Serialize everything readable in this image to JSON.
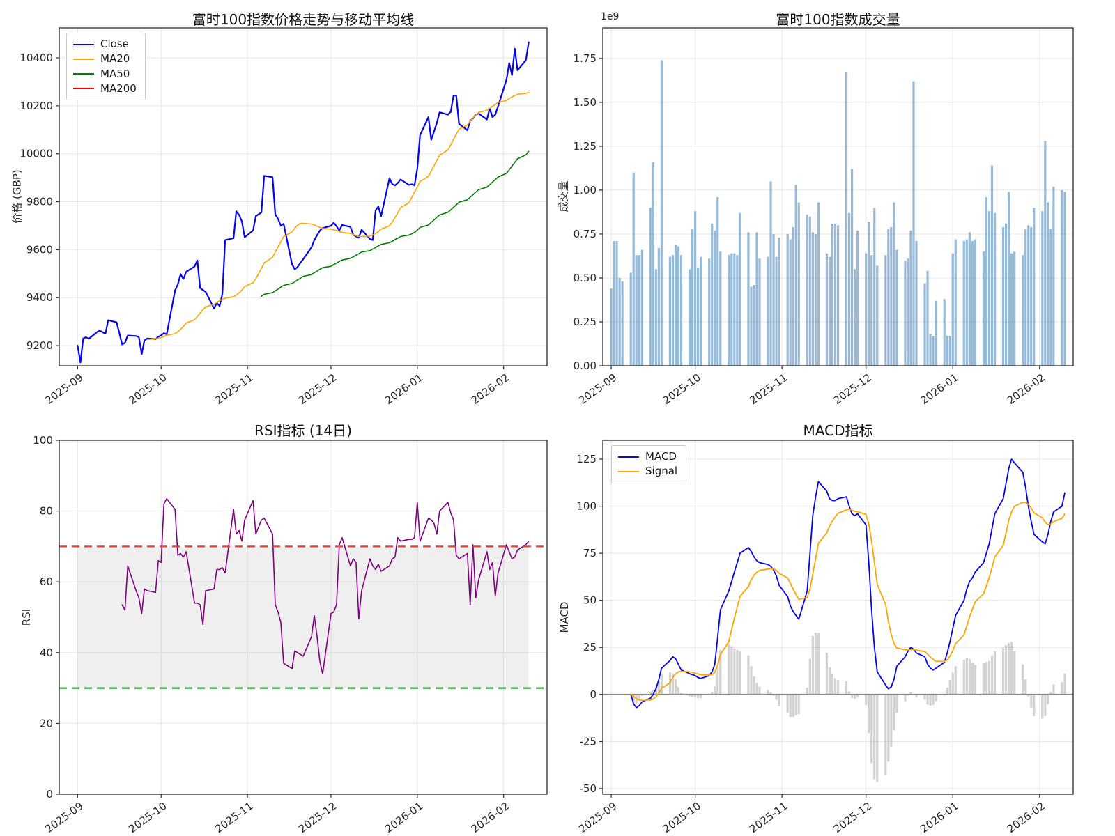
{
  "x_axis": {
    "start_date": "2025-09-01",
    "business_days": 117,
    "ticks": [
      {
        "label": "2025-09",
        "day": 0
      },
      {
        "label": "2025-10",
        "day": 30
      },
      {
        "label": "2025-11",
        "day": 61
      },
      {
        "label": "2025-12",
        "day": 91
      },
      {
        "label": "2026-01",
        "day": 122
      },
      {
        "label": "2026-02",
        "day": 153
      }
    ]
  },
  "style": {
    "grid_color": "#e7e7e7",
    "spine_color": "#2a2a2a",
    "tick_text_color": "#262626"
  },
  "chart_data": [
    {
      "id": "price",
      "type": "line",
      "title": "富时100指数价格走势与移动平均线",
      "ylabel": "价格 (GBP)",
      "ylim": [
        9116,
        10525
      ],
      "yticks": [
        {
          "v": 9200,
          "l": "9200"
        },
        {
          "v": 9400,
          "l": "9400"
        },
        {
          "v": 9600,
          "l": "9600"
        },
        {
          "v": 9800,
          "l": "9800"
        },
        {
          "v": 10000,
          "l": "10000"
        },
        {
          "v": 10200,
          "l": "10200"
        },
        {
          "v": 10400,
          "l": "10400"
        }
      ],
      "series": [
        {
          "name": "Close",
          "color": "#0404ee",
          "width": 2.2,
          "start": 0,
          "values": [
            9200,
            9130,
            9230,
            9235,
            9228,
            9257,
            9262,
            9256,
            9250,
            9306,
            9297,
            9252,
            9205,
            9212,
            9242,
            9240,
            9235,
            9165,
            9222,
            9230,
            9227,
            9237,
            9243,
            9252,
            9247,
            9430,
            9455,
            9498,
            9478,
            9508,
            9530,
            9555,
            9440,
            9432,
            9424,
            9355,
            9378,
            9365,
            9415,
            9640,
            9648,
            9760,
            9745,
            9718,
            9652,
            9680,
            9740,
            9748,
            9755,
            9908,
            9902,
            9748,
            9728,
            9700,
            9708,
            9540,
            9518,
            9528,
            9545,
            9560,
            9610,
            9640,
            9660,
            9680,
            9690,
            9700,
            9713,
            9698,
            9680,
            9703,
            9695,
            9663,
            9655,
            9650,
            9683,
            9645,
            9640,
            9763,
            9780,
            9740,
            9898,
            9873,
            9868,
            9878,
            9893,
            9870,
            9873,
            9868,
            9938,
            10078,
            10153,
            10058,
            10093,
            10128,
            10173,
            10163,
            10175,
            10243,
            10243,
            10125,
            10098,
            10138,
            10148,
            10163,
            10168,
            10143,
            10188,
            10153,
            10163,
            10198,
            10308,
            10378,
            10328,
            10438,
            10348,
            10390,
            10465
          ]
        },
        {
          "name": "MA20",
          "color": "#ffa500",
          "width": 1.6,
          "start": 19,
          "values": [
            9225,
            9228,
            9231,
            9234,
            9238,
            9243,
            9250,
            9258,
            9268,
            9280,
            9294,
            9308,
            9322,
            9336,
            9350,
            9362,
            9372,
            9380,
            9387,
            9393,
            9398,
            9404,
            9411,
            9420,
            9432,
            9446,
            9462,
            9480,
            9500,
            9522,
            9545,
            9568,
            9590,
            9612,
            9634,
            9655,
            9674,
            9690,
            9702,
            9710,
            9710,
            9707,
            9703,
            9698,
            9693,
            9689,
            9686,
            9683,
            9680,
            9676,
            9672,
            9668,
            9663,
            9658,
            9655,
            9655,
            9657,
            9661,
            9667,
            9675,
            9686,
            9700,
            9716,
            9734,
            9754,
            9775,
            9796,
            9818,
            9840,
            9862,
            9884,
            9906,
            9928,
            9950,
            9972,
            9994,
            10016,
            10038,
            10060,
            10082,
            10102,
            10120,
            10136,
            10150,
            10162,
            10172,
            10181,
            10190,
            10198,
            10206,
            10214,
            10222,
            10230,
            10237,
            10243,
            10248,
            10252,
            10256
          ]
        },
        {
          "name": "MA50",
          "color": "#008000",
          "width": 1.6,
          "start": 48,
          "values": [
            9406,
            9414,
            9421,
            9429,
            9436,
            9444,
            9451,
            9459,
            9466,
            9474,
            9481,
            9489,
            9496,
            9504,
            9511,
            9518,
            9525,
            9531,
            9538,
            9544,
            9551,
            9557,
            9564,
            9570,
            9577,
            9583,
            9590,
            9596,
            9603,
            9609,
            9616,
            9622,
            9629,
            9635,
            9642,
            9648,
            9655,
            9661,
            9666,
            9672,
            9682,
            9693,
            9703,
            9714,
            9724,
            9735,
            9745,
            9756,
            9766,
            9777,
            9787,
            9798,
            9808,
            9819,
            9829,
            9840,
            9850,
            9861,
            9871,
            9882,
            9892,
            9903,
            9918,
            9933,
            9949,
            9964,
            9979,
            9995,
            10010
          ]
        },
        {
          "name": "MA200",
          "color": "#ff0000",
          "width": 1.6,
          "start": 0,
          "values": []
        }
      ]
    },
    {
      "id": "volume",
      "type": "bar",
      "title": "富时100指数成交量",
      "ylabel": "成交量",
      "offset_text": "1e9",
      "ylim": [
        0,
        1.924
      ],
      "bar_color": "rgba(70,130,180,0.55)",
      "yticks": [
        {
          "v": 0,
          "l": "0.00"
        },
        {
          "v": 0.25,
          "l": "0.25"
        },
        {
          "v": 0.5,
          "l": "0.50"
        },
        {
          "v": 0.75,
          "l": "0.75"
        },
        {
          "v": 1.0,
          "l": "1.00"
        },
        {
          "v": 1.25,
          "l": "1.25"
        },
        {
          "v": 1.5,
          "l": "1.50"
        },
        {
          "v": 1.75,
          "l": "1.75"
        }
      ],
      "values": [
        0.44,
        0.71,
        0.71,
        0.5,
        0.48,
        0.53,
        1.1,
        0.63,
        0.63,
        0.66,
        0.9,
        1.16,
        0.55,
        0.67,
        1.74,
        0.62,
        0.63,
        0.69,
        0.68,
        0.63,
        0.55,
        0.78,
        0.88,
        0.56,
        0.62,
        0.61,
        0.81,
        0.77,
        0.96,
        0.65,
        0.63,
        0.64,
        0.64,
        0.63,
        0.87,
        0.76,
        0.45,
        0.46,
        0.76,
        0.61,
        0.62,
        1.05,
        0.75,
        0.62,
        0.73,
        0.75,
        0.72,
        0.79,
        1.03,
        0.93,
        0.86,
        0.85,
        0.76,
        0.75,
        0.93,
        0.64,
        0.62,
        0.81,
        0.81,
        0.8,
        1.67,
        0.87,
        1.12,
        0.55,
        0.77,
        0.64,
        0.82,
        0.63,
        0.9,
        0.57,
        0.63,
        0.78,
        0.79,
        0.93,
        0.66,
        0.6,
        0.61,
        0.77,
        1.62,
        0.71,
        0.47,
        0.54,
        0.18,
        0.17,
        0.37,
        0.38,
        0.17,
        0.17,
        0.64,
        0.72,
        0.71,
        0.72,
        0.76,
        0.71,
        0.72,
        0.65,
        0.96,
        0.88,
        1.14,
        0.87,
        0.79,
        0.81,
        0.99,
        0.64,
        0.65,
        0.63,
        0.78,
        0.8,
        0.79,
        0.9,
        0.88,
        1.28,
        0.93,
        0.78,
        1.02,
        1.0,
        0.99
      ]
    },
    {
      "id": "rsi",
      "type": "line",
      "title": "RSI指标 (14日)",
      "ylabel": "RSI",
      "ylim": [
        0,
        100
      ],
      "yticks": [
        {
          "v": 0,
          "l": "0"
        },
        {
          "v": 20,
          "l": "20"
        },
        {
          "v": 40,
          "l": "40"
        },
        {
          "v": 60,
          "l": "60"
        },
        {
          "v": 80,
          "l": "80"
        },
        {
          "v": 100,
          "l": "100"
        }
      ],
      "band": {
        "y1": 30,
        "y2": 70,
        "color": "rgba(130,130,130,0.13)"
      },
      "hlines": [
        {
          "y": 70,
          "color": "#f03b30",
          "style": "dashed"
        },
        {
          "y": 30,
          "color": "#23a32b",
          "style": "dashed"
        }
      ],
      "series": [
        {
          "name": "RSI",
          "color": "#800080",
          "width": 1.6,
          "start": 12,
          "values": [
            53.5,
            52,
            64.5,
            57.5,
            55.5,
            51,
            58,
            57.5,
            57,
            66,
            65.5,
            82,
            83.5,
            80.5,
            67.5,
            68,
            67,
            68.5,
            54,
            54,
            53.5,
            48,
            57.5,
            58,
            63.5,
            63.5,
            64,
            62.5,
            80.5,
            73.5,
            74.5,
            71.5,
            77.5,
            83,
            73.5,
            75.5,
            77.5,
            78,
            73.5,
            53.5,
            51.5,
            48.5,
            37,
            35.5,
            40.5,
            40,
            39.5,
            39,
            44.5,
            50.5,
            44.5,
            37.5,
            34,
            51,
            51.5,
            53.5,
            70.5,
            72.5,
            64.5,
            66.5,
            65.5,
            49.5,
            57.5,
            66.5,
            64.5,
            63.5,
            65,
            63,
            64.5,
            66.5,
            67,
            72.5,
            71.5,
            72,
            72,
            72.5,
            82.5,
            71.5,
            78,
            77.5,
            76.5,
            73.5,
            80,
            82.5,
            79.5,
            77.5,
            67.5,
            66.5,
            68,
            53.5,
            70.5,
            55.5,
            60.5,
            68.5,
            63.5,
            65.5,
            56,
            62.5,
            70.5,
            68.5,
            66.5,
            67,
            69,
            70.5,
            71.5
          ]
        }
      ]
    },
    {
      "id": "macd",
      "type": "line_hist",
      "title": "MACD指标",
      "ylabel": "MACD",
      "ylim": [
        -53,
        135
      ],
      "yticks": [
        {
          "v": -50,
          "l": "-50"
        },
        {
          "v": -25,
          "l": "-25"
        },
        {
          "v": 0,
          "l": "0"
        },
        {
          "v": 25,
          "l": "25"
        },
        {
          "v": 50,
          "l": "50"
        },
        {
          "v": 75,
          "l": "75"
        },
        {
          "v": 100,
          "l": "100"
        },
        {
          "v": 125,
          "l": "125"
        }
      ],
      "zero_line_color": "#8a8a8a",
      "hist_color": "rgba(127,127,127,0.35)",
      "series": [
        {
          "name": "MACD",
          "color": "#0404ee",
          "width": 1.8,
          "start": 5,
          "values": [
            0,
            -5,
            -7,
            -6,
            -4,
            -2,
            0,
            3,
            8,
            14,
            18,
            20,
            19,
            16,
            13,
            11,
            10.5,
            10,
            9,
            8.5,
            10,
            12,
            16,
            30,
            45,
            55,
            60,
            65,
            70,
            75,
            78,
            76,
            73,
            71,
            70,
            69,
            68,
            66,
            63,
            58,
            52,
            47,
            44,
            42,
            40,
            55,
            75,
            95,
            105,
            113,
            108,
            104,
            103,
            103,
            104,
            105,
            100,
            96,
            95,
            96,
            90,
            70,
            45,
            25,
            12,
            5,
            3,
            4,
            8,
            15,
            20,
            23,
            25,
            24,
            22,
            20,
            16,
            14,
            13,
            14,
            17,
            22,
            28,
            35,
            42,
            50,
            56,
            60,
            62,
            65,
            70,
            75,
            80,
            88,
            96,
            104,
            112,
            120,
            125,
            123,
            118,
            110,
            100,
            92,
            85,
            81,
            80,
            85,
            92,
            97,
            100,
            107
          ]
        },
        {
          "name": "Signal",
          "color": "#ffa500",
          "width": 1.8,
          "start": 5,
          "values": [
            0,
            -1,
            -2.2,
            -3,
            -3.2,
            -3,
            -2.4,
            -1.3,
            0.6,
            3.3,
            6.2,
            9,
            11,
            12,
            12.2,
            12,
            11.7,
            11.3,
            10.9,
            10.4,
            10.3,
            10.6,
            11.7,
            15.4,
            21.3,
            28,
            34.4,
            40.5,
            46.4,
            52.1,
            57.3,
            61,
            63.4,
            64.9,
            65.9,
            66.6,
            66.8,
            66.7,
            65.9,
            64.3,
            61.9,
            58.9,
            55.9,
            53.1,
            50.5,
            51.4,
            56.1,
            63.9,
            72.1,
            80.3,
            85.8,
            89.5,
            92.2,
            94.3,
            96.3,
            98,
            98.4,
            97.9,
            97.3,
            97.1,
            95.6,
            90.5,
            81.4,
            70.1,
            58.5,
            47.8,
            38.8,
            31.9,
            27.1,
            24.7,
            23.7,
            23.6,
            23.9,
            23.9,
            23.5,
            22.8,
            21.4,
            19.9,
            18.6,
            17.6,
            17.5,
            18.4,
            20.3,
            23.3,
            27,
            31.6,
            36.5,
            41.2,
            45.3,
            49.3,
            53.4,
            57.7,
            62.2,
            67.3,
            73.1,
            79.2,
            85.8,
            92.6,
            97,
            100,
            102,
            102,
            101,
            99,
            96.5,
            93.8,
            91.5,
            90.2,
            90.5,
            91.8,
            93.5,
            96
          ]
        }
      ]
    }
  ]
}
